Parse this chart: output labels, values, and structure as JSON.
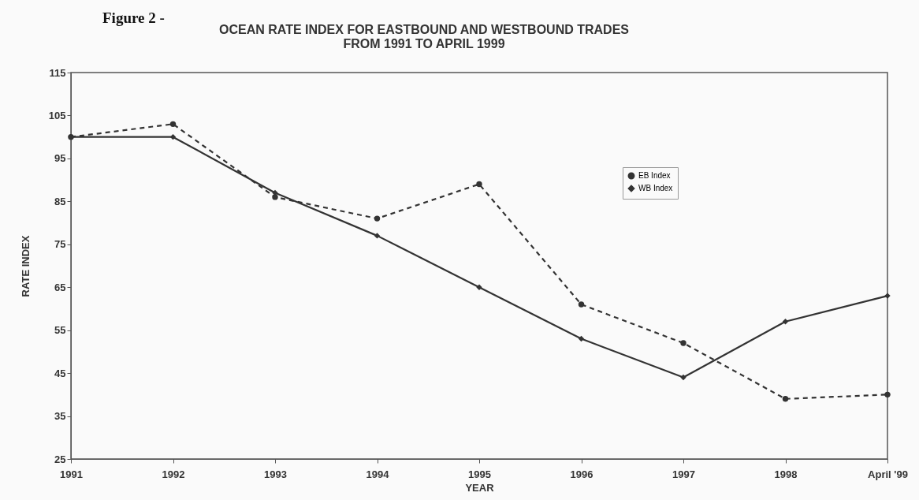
{
  "chart_data": {
    "type": "line",
    "title": "OCEAN RATE INDEX FOR EASTBOUND AND WESTBOUND TRADES\nFROM 1991 TO APRIL 1999",
    "annotations": [
      "Figure 2 -"
    ],
    "xlabel": "YEAR",
    "ylabel": "RATE INDEX",
    "categories": [
      "1991",
      "1992",
      "1993",
      "1994",
      "1995",
      "1996",
      "1997",
      "1998",
      "April '99"
    ],
    "series": [
      {
        "name": "EB Index",
        "color": "#333333",
        "marker": "circle",
        "line_style": "dashed",
        "values": [
          100,
          103,
          86,
          81,
          89,
          61,
          52,
          39,
          40
        ]
      },
      {
        "name": "WB Index",
        "color": "#333333",
        "marker": "diamond",
        "line_style": "solid",
        "values": [
          100,
          100,
          87,
          77,
          65,
          53,
          44,
          57,
          63
        ]
      }
    ],
    "ylim": [
      25,
      115
    ],
    "yticks": [
      25,
      35,
      45,
      55,
      65,
      75,
      85,
      95,
      105,
      115
    ],
    "grid": false,
    "legend": "right"
  }
}
